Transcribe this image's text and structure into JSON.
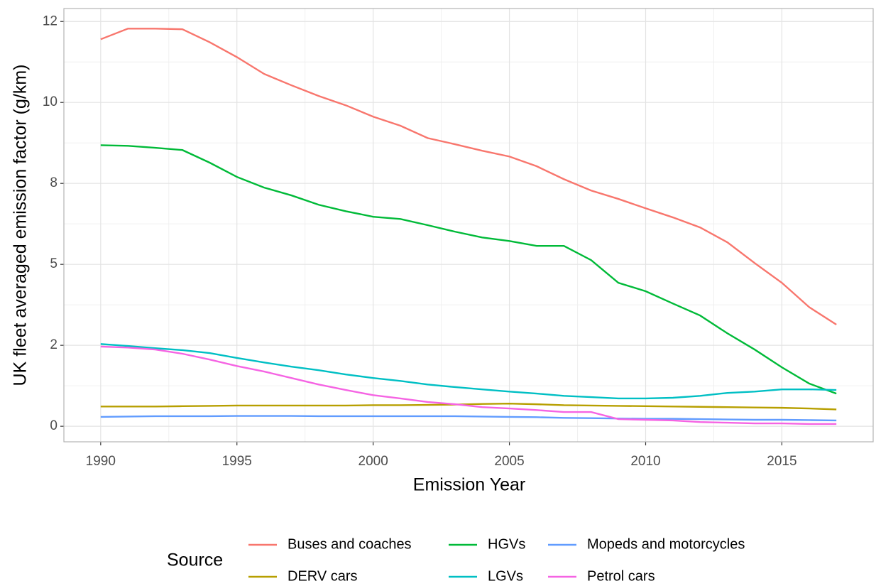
{
  "chart_data": {
    "type": "line",
    "x_label": "Emission Year",
    "y_label": "UK fleet averaged emission factor (g/km)",
    "legend_title": "Source",
    "legend_position": "bottom",
    "grid": true,
    "x": [
      1990,
      1991,
      1992,
      1993,
      1994,
      1995,
      1996,
      1997,
      1998,
      1999,
      2000,
      2001,
      2002,
      2003,
      2004,
      2005,
      2006,
      2007,
      2008,
      2009,
      2010,
      2011,
      2012,
      2013,
      2014,
      2015,
      2016,
      2017
    ],
    "xlim": [
      1988.65,
      2018.35
    ],
    "xticks": [
      1990,
      1995,
      2000,
      2005,
      2010,
      2015
    ],
    "ylim": [
      -0.48,
      12.9
    ],
    "yticks": [
      0,
      {
        "value": 2.5,
        "label": "2"
      },
      {
        "value": 5,
        "label": "5"
      },
      {
        "value": 7.5,
        "label": "8"
      },
      {
        "value": 10,
        "label": "10"
      },
      {
        "value": 12.5,
        "label": "12"
      }
    ],
    "series": [
      {
        "name": "Buses and coaches",
        "color": "#F8766D",
        "values": [
          11.95,
          12.28,
          12.28,
          12.26,
          11.86,
          11.4,
          10.88,
          10.53,
          10.2,
          9.91,
          9.56,
          9.28,
          8.9,
          8.71,
          8.51,
          8.33,
          8.03,
          7.63,
          7.28,
          7.02,
          6.73,
          6.45,
          6.14,
          5.68,
          5.04,
          4.43,
          3.68,
          3.14
        ]
      },
      {
        "name": "DERV cars",
        "color": "#B79F00",
        "values": [
          0.61,
          0.61,
          0.61,
          0.62,
          0.63,
          0.64,
          0.64,
          0.64,
          0.64,
          0.64,
          0.65,
          0.65,
          0.66,
          0.67,
          0.69,
          0.7,
          0.68,
          0.65,
          0.64,
          0.63,
          0.62,
          0.61,
          0.6,
          0.59,
          0.58,
          0.57,
          0.55,
          0.52
        ]
      },
      {
        "name": "HGVs",
        "color": "#00BA38",
        "values": [
          8.68,
          8.66,
          8.6,
          8.53,
          8.14,
          7.7,
          7.37,
          7.13,
          6.84,
          6.64,
          6.47,
          6.4,
          6.21,
          6.01,
          5.83,
          5.72,
          5.57,
          5.57,
          5.13,
          4.43,
          4.17,
          3.79,
          3.42,
          2.87,
          2.37,
          1.82,
          1.32,
          1.01
        ]
      },
      {
        "name": "LGVs",
        "color": "#00BFC4",
        "values": [
          2.54,
          2.48,
          2.41,
          2.35,
          2.26,
          2.11,
          1.97,
          1.84,
          1.73,
          1.6,
          1.49,
          1.4,
          1.29,
          1.21,
          1.14,
          1.07,
          1.01,
          0.94,
          0.9,
          0.86,
          0.86,
          0.88,
          0.94,
          1.03,
          1.07,
          1.14,
          1.14,
          1.12
        ]
      },
      {
        "name": "Mopeds and motorcycles",
        "color": "#619CFF",
        "values": [
          0.29,
          0.3,
          0.31,
          0.31,
          0.31,
          0.32,
          0.32,
          0.32,
          0.31,
          0.31,
          0.31,
          0.31,
          0.31,
          0.31,
          0.3,
          0.29,
          0.28,
          0.26,
          0.25,
          0.24,
          0.23,
          0.23,
          0.22,
          0.21,
          0.2,
          0.2,
          0.19,
          0.18
        ]
      },
      {
        "name": "Petrol cars",
        "color": "#F564E3",
        "values": [
          2.46,
          2.43,
          2.37,
          2.24,
          2.06,
          1.86,
          1.69,
          1.49,
          1.29,
          1.12,
          0.96,
          0.86,
          0.75,
          0.68,
          0.59,
          0.55,
          0.5,
          0.44,
          0.44,
          0.22,
          0.2,
          0.18,
          0.13,
          0.11,
          0.09,
          0.09,
          0.07,
          0.07
        ]
      }
    ]
  }
}
